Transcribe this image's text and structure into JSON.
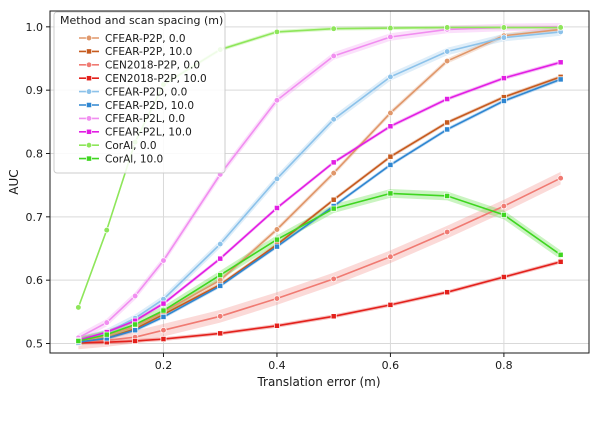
{
  "chart_data": {
    "type": "line",
    "xlabel": "Translation error (m)",
    "ylabel": "AUC",
    "xlim": [
      0.0,
      0.95
    ],
    "ylim": [
      0.485,
      1.025
    ],
    "xticks": [
      0.2,
      0.4,
      0.6,
      0.8
    ],
    "xtick_labels": [
      "0.2",
      "0.4",
      "0.6",
      "0.8"
    ],
    "yticks": [
      0.5,
      0.6,
      0.7,
      0.8,
      0.9,
      1.0
    ],
    "ytick_labels": [
      "0.5",
      "0.6",
      "0.7",
      "0.8",
      "0.9",
      "1.0"
    ],
    "grid": true,
    "legend": {
      "title": "Method and scan spacing (m)",
      "placement": "top-left"
    },
    "x": [
      0.05,
      0.1,
      0.15,
      0.2,
      0.3,
      0.4,
      0.5,
      0.6,
      0.7,
      0.8,
      0.9
    ],
    "series": [
      {
        "name": "CFEAR-P2P, 0.0",
        "color": "#e0976a",
        "marker": "circle",
        "band": 0.004,
        "values": [
          0.503,
          0.512,
          0.527,
          0.55,
          0.6,
          0.68,
          0.769,
          0.864,
          0.946,
          0.986,
          0.996
        ]
      },
      {
        "name": "CFEAR-P2P, 10.0",
        "color": "#c65a1e",
        "marker": "square",
        "band": 0.003,
        "values": [
          0.502,
          0.508,
          0.523,
          0.546,
          0.593,
          0.656,
          0.727,
          0.795,
          0.849,
          0.889,
          0.921
        ]
      },
      {
        "name": "CEN2018-P2P, 0.0",
        "color": "#f07a72",
        "marker": "circle",
        "band": 0.01,
        "values": [
          0.501,
          0.505,
          0.51,
          0.521,
          0.543,
          0.571,
          0.602,
          0.637,
          0.676,
          0.717,
          0.761
        ]
      },
      {
        "name": "CEN2018-P2P, 10.0",
        "color": "#e3201b",
        "marker": "square",
        "band": 0.003,
        "values": [
          0.501,
          0.502,
          0.504,
          0.507,
          0.516,
          0.528,
          0.543,
          0.561,
          0.581,
          0.605,
          0.629
        ]
      },
      {
        "name": "CFEAR-P2D, 0.0",
        "color": "#8cc2ea",
        "marker": "circle",
        "band": 0.006,
        "values": [
          0.504,
          0.517,
          0.54,
          0.57,
          0.657,
          0.76,
          0.854,
          0.921,
          0.961,
          0.983,
          0.992
        ]
      },
      {
        "name": "CFEAR-P2D, 10.0",
        "color": "#2e86d1",
        "marker": "square",
        "band": 0.003,
        "values": [
          0.502,
          0.508,
          0.521,
          0.542,
          0.591,
          0.653,
          0.717,
          0.782,
          0.838,
          0.883,
          0.917
        ]
      },
      {
        "name": "CFEAR-P2L, 0.0",
        "color": "#f18ef0",
        "marker": "circle",
        "band": 0.006,
        "values": [
          0.509,
          0.533,
          0.575,
          0.631,
          0.767,
          0.884,
          0.954,
          0.984,
          0.996,
          0.999,
          1.0
        ]
      },
      {
        "name": "CFEAR-P2L, 10.0",
        "color": "#e21ee3",
        "marker": "square",
        "band": 0.003,
        "values": [
          0.505,
          0.518,
          0.536,
          0.563,
          0.634,
          0.714,
          0.786,
          0.843,
          0.886,
          0.919,
          0.944
        ]
      },
      {
        "name": "CorAl, 0.0",
        "color": "#8ee65a",
        "marker": "circle",
        "band": 0.003,
        "values": [
          0.557,
          0.679,
          0.818,
          0.909,
          0.964,
          0.992,
          0.997,
          0.998,
          0.999,
          0.999,
          0.999
        ]
      },
      {
        "name": "CorAl, 10.0",
        "color": "#3fd620",
        "marker": "square",
        "band": 0.007,
        "values": [
          0.504,
          0.514,
          0.53,
          0.552,
          0.608,
          0.664,
          0.713,
          0.737,
          0.733,
          0.703,
          0.64
        ]
      }
    ]
  }
}
